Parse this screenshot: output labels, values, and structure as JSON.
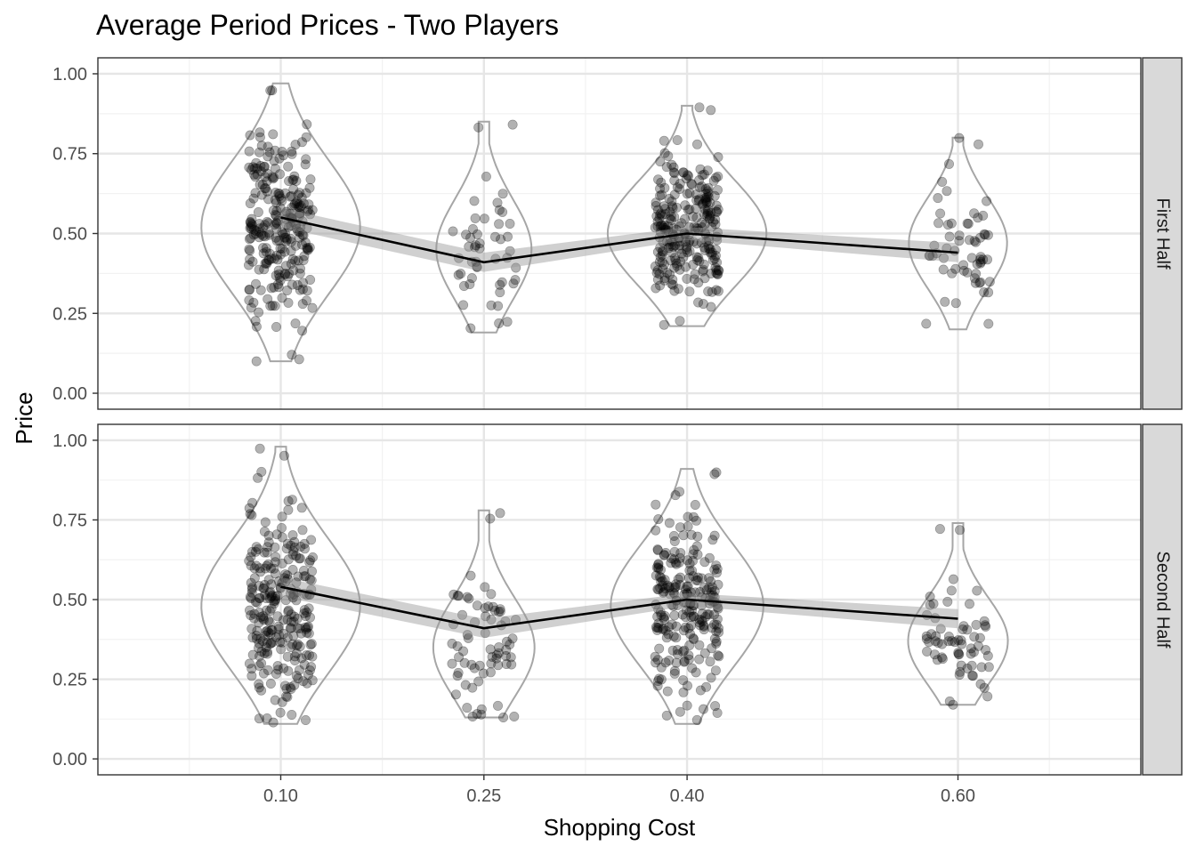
{
  "chart_data": {
    "type": "scatter",
    "title": "Average Period Prices - Two Players",
    "xlabel": "Shopping Cost",
    "ylabel": "Price",
    "x_categories": [
      "0.10",
      "0.25",
      "0.40",
      "0.60"
    ],
    "x_values": [
      0.1,
      0.25,
      0.4,
      0.6
    ],
    "xlim": [
      -0.035,
      0.735
    ],
    "ylim": [
      -0.05,
      1.05
    ],
    "y_ticks": [
      "0.00",
      "0.25",
      "0.50",
      "0.75",
      "1.00"
    ],
    "grid": true,
    "panels": [
      {
        "facet": "First Half",
        "violin_range": [
          [
            0.1,
            0.97
          ],
          [
            0.19,
            0.85
          ],
          [
            0.21,
            0.9
          ],
          [
            0.2,
            0.8
          ]
        ],
        "violin_peak": [
          0.52,
          0.45,
          0.5,
          0.47
        ],
        "mean_line": [
          0.55,
          0.41,
          0.5,
          0.44
        ],
        "ci_band": [
          [
            0.52,
            0.58
          ],
          [
            0.38,
            0.44
          ],
          [
            0.48,
            0.52
          ],
          [
            0.41,
            0.47
          ]
        ],
        "point_counts": [
          260,
          50,
          260,
          60
        ]
      },
      {
        "facet": "Second Half",
        "violin_range": [
          [
            0.11,
            0.98
          ],
          [
            0.13,
            0.78
          ],
          [
            0.11,
            0.91
          ],
          [
            0.17,
            0.74
          ]
        ],
        "violin_peak": [
          0.48,
          0.35,
          0.48,
          0.37
        ],
        "mean_line": [
          0.54,
          0.41,
          0.5,
          0.44
        ],
        "ci_band": [
          [
            0.51,
            0.57
          ],
          [
            0.38,
            0.44
          ],
          [
            0.48,
            0.52
          ],
          [
            0.41,
            0.47
          ]
        ],
        "point_counts": [
          260,
          70,
          240,
          65
        ]
      }
    ]
  }
}
